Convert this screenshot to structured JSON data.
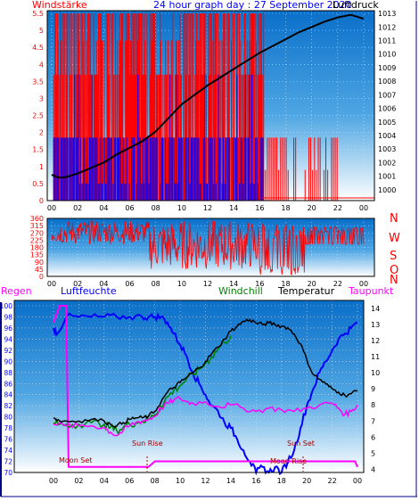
{
  "colors": {
    "wind": "#ff0000",
    "gust": "#0000ff",
    "pressure": "#000000",
    "humidity": "#0000ff",
    "windchill": "#008000",
    "temperature": "#000000",
    "dewpoint": "#ff00ff",
    "rain": "#ff00ff",
    "frame": "#000000"
  },
  "panel1": {
    "title": "24 hour graph day : 27 September 2020",
    "left_label": "Windstärke",
    "right_label": "Luftdruck"
  },
  "panel2": {
    "direction_labels": [
      "N",
      "W",
      "S",
      "O",
      "N"
    ]
  },
  "panel3": {
    "legend": {
      "rain": "Regen",
      "humidity": "Luftfeuchte",
      "windchill": "Windchill",
      "temperature": "Temperatur",
      "dewpoint": "Taupunkt"
    },
    "annotations": {
      "sun_rise": "Sun Rise",
      "sun_set": "Sun Set",
      "moon_set": "Moon Set",
      "moon_rise": "Moon Rise"
    }
  },
  "chart_data": [
    {
      "type": "line",
      "name": "wind_pressure",
      "x_ticks": [
        "00",
        "02",
        "04",
        "06",
        "08",
        "10",
        "12",
        "14",
        "16",
        "18",
        "20",
        "22",
        "00"
      ],
      "y_left_ticks": [
        "0",
        "0.5",
        "1",
        "1.5",
        "2",
        "2.5",
        "3",
        "3.5",
        "4",
        "4.5",
        "5",
        "5.5"
      ],
      "y_right_ticks": [
        "1000",
        "1001",
        "1002",
        "1003",
        "1004",
        "1005",
        "1006",
        "1007",
        "1008",
        "1009",
        "1010",
        "1011",
        "1012",
        "1013"
      ],
      "ylim_left": [
        0,
        5.5
      ],
      "ylim_right": [
        999.2,
        1013.2
      ],
      "pressure_series": {
        "x": [
          0,
          0.5,
          1,
          2,
          3,
          4,
          5,
          6,
          7,
          8,
          9,
          10,
          11,
          12,
          13,
          14,
          15,
          16,
          17,
          18,
          19,
          20,
          21,
          22,
          23,
          24
        ],
        "y": [
          1001.1,
          1000.9,
          1000.9,
          1001.2,
          1001.6,
          1002.0,
          1002.6,
          1003.1,
          1003.6,
          1004.3,
          1005.3,
          1006.3,
          1007.0,
          1007.7,
          1008.3,
          1008.9,
          1009.5,
          1010.1,
          1010.6,
          1011.1,
          1011.6,
          1012.0,
          1012.4,
          1012.7,
          1012.9,
          1012.6
        ]
      }
    },
    {
      "type": "line",
      "name": "wind_direction",
      "x_ticks": [
        "00",
        "02",
        "04",
        "06",
        "08",
        "10",
        "12",
        "14",
        "16",
        "18",
        "20",
        "22",
        "00"
      ],
      "y_ticks": [
        "0",
        "45",
        "90",
        "135",
        "180",
        "225",
        "270",
        "315",
        "360"
      ],
      "ylim": [
        0,
        360
      ]
    },
    {
      "type": "line",
      "name": "weather",
      "x_ticks": [
        "00",
        "02",
        "04",
        "06",
        "08",
        "10",
        "12",
        "14",
        "16",
        "18",
        "20",
        "22",
        "00"
      ],
      "y_left_ticks": [
        "70",
        "72",
        "74",
        "76",
        "78",
        "80",
        "82",
        "84",
        "86",
        "88",
        "90",
        "92",
        "94",
        "96",
        "98",
        "100"
      ],
      "y_right_ticks": [
        "4",
        "5",
        "6",
        "7",
        "8",
        "9",
        "10",
        "11",
        "12",
        "13",
        "14"
      ],
      "ylim_left": [
        70,
        100
      ],
      "ylim_right": [
        3.8,
        14.5
      ],
      "temperature": {
        "x": [
          0,
          0.5,
          1,
          2,
          3,
          4,
          4.5,
          5,
          5.5,
          6,
          6.5,
          7,
          7.5,
          8,
          8.5,
          9,
          9.5,
          10,
          10.5,
          11,
          11.5,
          12,
          12.5,
          13,
          13.5,
          14,
          14.5,
          15,
          15.5,
          16,
          16.5,
          17,
          17.5,
          18,
          18.5,
          19,
          19.5,
          20,
          20.5,
          21,
          21.5,
          22,
          22.5,
          23,
          23.5,
          24
        ],
        "y": [
          7.2,
          7.0,
          7.0,
          7.0,
          7.1,
          7.0,
          6.8,
          6.7,
          6.9,
          7.1,
          7.2,
          7.2,
          7.3,
          7.6,
          8.2,
          8.8,
          9.1,
          9.4,
          9.7,
          10.0,
          10.3,
          10.7,
          11.2,
          11.6,
          12.1,
          12.6,
          12.9,
          13.2,
          13.3,
          13.1,
          13.0,
          13.1,
          13.0,
          12.9,
          12.8,
          12.4,
          11.8,
          10.8,
          9.9,
          9.6,
          9.3,
          9.0,
          8.8,
          8.6,
          8.7,
          8.9
        ]
      },
      "windchill": {
        "x": [
          0,
          0.5,
          1,
          2,
          3,
          4,
          4.5,
          5,
          5.5,
          6,
          6.5,
          7,
          7.5,
          8,
          8.5,
          9,
          9.5,
          10,
          10.5,
          11,
          11.5,
          12,
          12.5,
          13,
          13.5,
          14
        ],
        "y": [
          6.9,
          6.8,
          6.8,
          6.8,
          6.9,
          6.8,
          6.6,
          6.4,
          6.6,
          6.8,
          6.9,
          7.0,
          7.1,
          7.4,
          7.9,
          8.5,
          8.9,
          9.2,
          9.6,
          9.9,
          10.2,
          10.6,
          11.0,
          11.5,
          11.9,
          12.3
        ]
      },
      "dewpoint": {
        "x": [
          0,
          1,
          2,
          3,
          4,
          4.5,
          5,
          5.5,
          6,
          6.5,
          7,
          7.5,
          8,
          8.5,
          9,
          9.5,
          10,
          10.5,
          11,
          12,
          13,
          14,
          15,
          16,
          17,
          18,
          19,
          20,
          21,
          22,
          22.5,
          23,
          23.5,
          24
        ],
        "y": [
          6.8,
          6.7,
          6.7,
          6.7,
          6.6,
          6.3,
          6.1,
          6.4,
          6.7,
          6.9,
          7.0,
          7.1,
          7.3,
          7.8,
          8.1,
          8.3,
          8.4,
          8.2,
          8.1,
          8.2,
          7.9,
          8.0,
          7.8,
          7.6,
          7.8,
          7.7,
          7.6,
          7.8,
          8.0,
          8.1,
          7.8,
          7.4,
          7.6,
          8.0
        ]
      },
      "humidity": {
        "x": [
          0,
          0.3,
          1,
          2,
          3,
          4,
          5,
          6,
          7,
          7.5,
          8,
          8.5,
          9,
          9.5,
          10,
          10.5,
          11,
          11.5,
          12,
          12.5,
          13,
          13.5,
          14,
          14.5,
          15,
          15.5,
          16,
          16.5,
          17,
          17.5,
          18,
          18.5,
          19,
          19.5,
          20,
          20.5,
          21,
          21.5,
          22,
          22.5,
          23,
          23.5,
          24
        ],
        "y": [
          96,
          95,
          98,
          98,
          98,
          98,
          98,
          98,
          98,
          98,
          98,
          98,
          97,
          95,
          93,
          91,
          88,
          86,
          84,
          82,
          81,
          79,
          78,
          76,
          74,
          72,
          70,
          71,
          70,
          71,
          70,
          72,
          74,
          78,
          82,
          85,
          88,
          90,
          92,
          94,
          95,
          96,
          97
        ]
      },
      "rain": {
        "x": [
          0,
          0.5,
          1,
          1.2,
          7.5,
          8,
          19.5,
          23.8,
          24
        ],
        "y": [
          97,
          100,
          100,
          71,
          71,
          72,
          72,
          72,
          71
        ]
      }
    }
  ]
}
